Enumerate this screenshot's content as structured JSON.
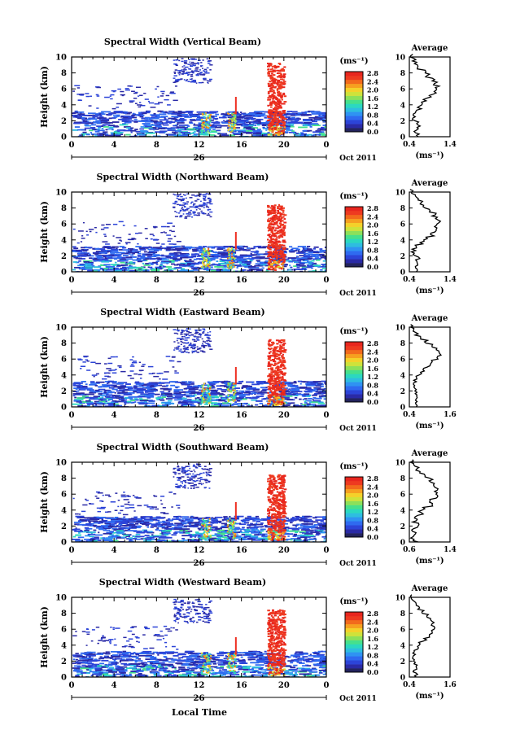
{
  "figure": {
    "xlabel": "Local Time",
    "date_label": "Oct 2011",
    "day_label": "26",
    "unit_label": "(ms⁻¹)",
    "avg_title": "Average",
    "avg_xlabel": "(ms⁻¹)",
    "ylabel": "Height (km)"
  },
  "colors": {
    "colorbar": [
      "#23235e",
      "#2a2aa6",
      "#2c44d8",
      "#2f6af0",
      "#2f93f2",
      "#2ebde0",
      "#2bd8c0",
      "#46e08c",
      "#8ce05a",
      "#cfe23a",
      "#f4d12a",
      "#f6a020",
      "#f26a1c",
      "#ee3a20",
      "#e8261e"
    ],
    "echo_blue": "#3a4ee0",
    "echo_red": "#ee3022"
  },
  "chart_data": [
    {
      "type": "heatmap",
      "title": "Spectral Width (Vertical Beam)",
      "x_ticks": [
        "0",
        "4",
        "8",
        "12",
        "16",
        "20",
        "0"
      ],
      "y_ticks": [
        "0",
        "2",
        "4",
        "6",
        "8",
        "10"
      ],
      "colorbar_ticks": [
        "0.0",
        "0.4",
        "0.8",
        "1.2",
        "1.6",
        "2.0",
        "2.4",
        "2.8"
      ],
      "xlim": [
        0,
        24
      ],
      "ylim": [
        0,
        10
      ],
      "average": {
        "title": "Average",
        "xlim": [
          0.4,
          1.4
        ],
        "x_ticks": [
          "0.4",
          "1.4"
        ],
        "y_ticks": [
          "0",
          "2",
          "4",
          "6",
          "8",
          "10"
        ],
        "profile": [
          0.6,
          0.55,
          0.62,
          0.6,
          0.52,
          0.5,
          0.55,
          0.65,
          0.72,
          0.8,
          0.95,
          1.05,
          1.08,
          1.05,
          0.98,
          0.85,
          0.75,
          0.65,
          0.58,
          0.5,
          0.45
        ]
      }
    },
    {
      "type": "heatmap",
      "title": "Spectral Width (Northward Beam)",
      "x_ticks": [
        "0",
        "4",
        "8",
        "12",
        "16",
        "20",
        "0"
      ],
      "y_ticks": [
        "0",
        "2",
        "4",
        "6",
        "8",
        "10"
      ],
      "colorbar_ticks": [
        "0.0",
        "0.4",
        "0.8",
        "1.2",
        "1.6",
        "2.0",
        "2.4",
        "2.8"
      ],
      "xlim": [
        0,
        24
      ],
      "ylim": [
        0,
        10
      ],
      "average": {
        "title": "Average",
        "xlim": [
          0.4,
          1.4
        ],
        "x_ticks": [
          "0.4",
          "1.4"
        ],
        "y_ticks": [
          "0",
          "2",
          "4",
          "6",
          "8",
          "10"
        ],
        "profile": [
          0.6,
          0.55,
          0.62,
          0.6,
          0.52,
          0.5,
          0.55,
          0.72,
          0.8,
          0.95,
          1.0,
          1.08,
          1.12,
          1.1,
          1.0,
          0.88,
          0.78,
          0.7,
          0.6,
          0.5,
          0.45
        ]
      }
    },
    {
      "type": "heatmap",
      "title": "Spectral Width (Eastward Beam)",
      "x_ticks": [
        "0",
        "4",
        "8",
        "12",
        "16",
        "20",
        "0"
      ],
      "y_ticks": [
        "0",
        "2",
        "4",
        "6",
        "8",
        "10"
      ],
      "colorbar_ticks": [
        "0.0",
        "0.4",
        "0.8",
        "1.2",
        "1.6",
        "2.0",
        "2.4",
        "2.8"
      ],
      "xlim": [
        0,
        24
      ],
      "ylim": [
        0,
        10
      ],
      "average": {
        "title": "Average",
        "xlim": [
          0.4,
          1.6
        ],
        "x_ticks": [
          "0.4",
          "1.6"
        ],
        "y_ticks": [
          "0",
          "2",
          "4",
          "6",
          "8",
          "10"
        ],
        "profile": [
          0.62,
          0.58,
          0.6,
          0.58,
          0.55,
          0.52,
          0.55,
          0.62,
          0.7,
          0.82,
          0.98,
          1.1,
          1.25,
          1.3,
          1.22,
          1.05,
          0.9,
          0.75,
          0.6,
          0.5,
          0.45
        ]
      }
    },
    {
      "type": "heatmap",
      "title": "Spectral Width (Southward Beam)",
      "x_ticks": [
        "0",
        "4",
        "8",
        "12",
        "16",
        "20",
        "0"
      ],
      "y_ticks": [
        "0",
        "2",
        "4",
        "6",
        "8",
        "10"
      ],
      "colorbar_ticks": [
        "0.0",
        "0.4",
        "0.8",
        "1.2",
        "1.6",
        "2.0",
        "2.4",
        "2.8"
      ],
      "xlim": [
        0,
        24
      ],
      "ylim": [
        0,
        10
      ],
      "average": {
        "title": "Average",
        "xlim": [
          0.6,
          1.4
        ],
        "x_ticks": [
          "0.6",
          "1.4"
        ],
        "y_ticks": [
          "0",
          "2",
          "4",
          "6",
          "8",
          "10"
        ],
        "profile": [
          0.72,
          0.68,
          0.72,
          0.7,
          0.75,
          0.72,
          0.75,
          0.82,
          0.9,
          1.0,
          1.05,
          1.1,
          1.12,
          1.15,
          1.08,
          1.0,
          0.95,
          0.85,
          0.78,
          0.7,
          0.65
        ]
      }
    },
    {
      "type": "heatmap",
      "title": "Spectral Width (Westward Beam)",
      "x_ticks": [
        "0",
        "4",
        "8",
        "12",
        "16",
        "20",
        "0"
      ],
      "y_ticks": [
        "0",
        "2",
        "4",
        "6",
        "8",
        "10"
      ],
      "colorbar_ticks": [
        "0.0",
        "0.4",
        "0.8",
        "1.2",
        "1.6",
        "2.0",
        "2.4",
        "2.8"
      ],
      "xlim": [
        0,
        24
      ],
      "ylim": [
        0,
        10
      ],
      "average": {
        "title": "Average",
        "xlim": [
          0.4,
          1.6
        ],
        "x_ticks": [
          "0.4",
          "1.6"
        ],
        "y_ticks": [
          "0",
          "2",
          "4",
          "6",
          "8",
          "10"
        ],
        "profile": [
          0.6,
          0.55,
          0.6,
          0.58,
          0.55,
          0.52,
          0.55,
          0.62,
          0.72,
          0.85,
          1.0,
          1.1,
          1.15,
          1.1,
          1.05,
          0.9,
          0.8,
          0.7,
          0.6,
          0.5,
          0.45
        ]
      }
    }
  ]
}
